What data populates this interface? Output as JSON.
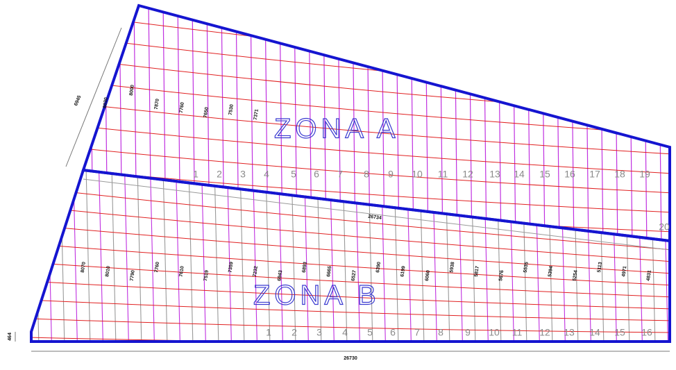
{
  "zone_a": {
    "label": "ZONA A",
    "strip_numbers": [
      "1",
      "2",
      "3",
      "4",
      "5",
      "6",
      "7",
      "8",
      "9",
      "10",
      "11",
      "12",
      "13",
      "14",
      "15",
      "16",
      "17",
      "18",
      "19"
    ],
    "strip_lengths": [
      "8030",
      "8000",
      "7870",
      "7760",
      "7650",
      "7530",
      "7371"
    ]
  },
  "zone_b": {
    "label": "ZONA B",
    "strip_numbers": [
      "1",
      "2",
      "3",
      "4",
      "5",
      "6",
      "7",
      "8",
      "9",
      "10",
      "11",
      "12",
      "13",
      "14",
      "15",
      "16"
    ],
    "strip_lengths": [
      "8070",
      "8010",
      "7790",
      "7760",
      "7610",
      "7519",
      "7359",
      "7232",
      "6943",
      "6893",
      "6665",
      "6527",
      "6390",
      "6199",
      "6060",
      "5938",
      "5817",
      "5676",
      "5535",
      "5394",
      "5254",
      "5113",
      "4971",
      "4831"
    ]
  },
  "extra_strip_number": "20",
  "dimensions": {
    "left_slant": "6945",
    "divider": "26734",
    "bottom": "26730",
    "left_offset": "464"
  }
}
